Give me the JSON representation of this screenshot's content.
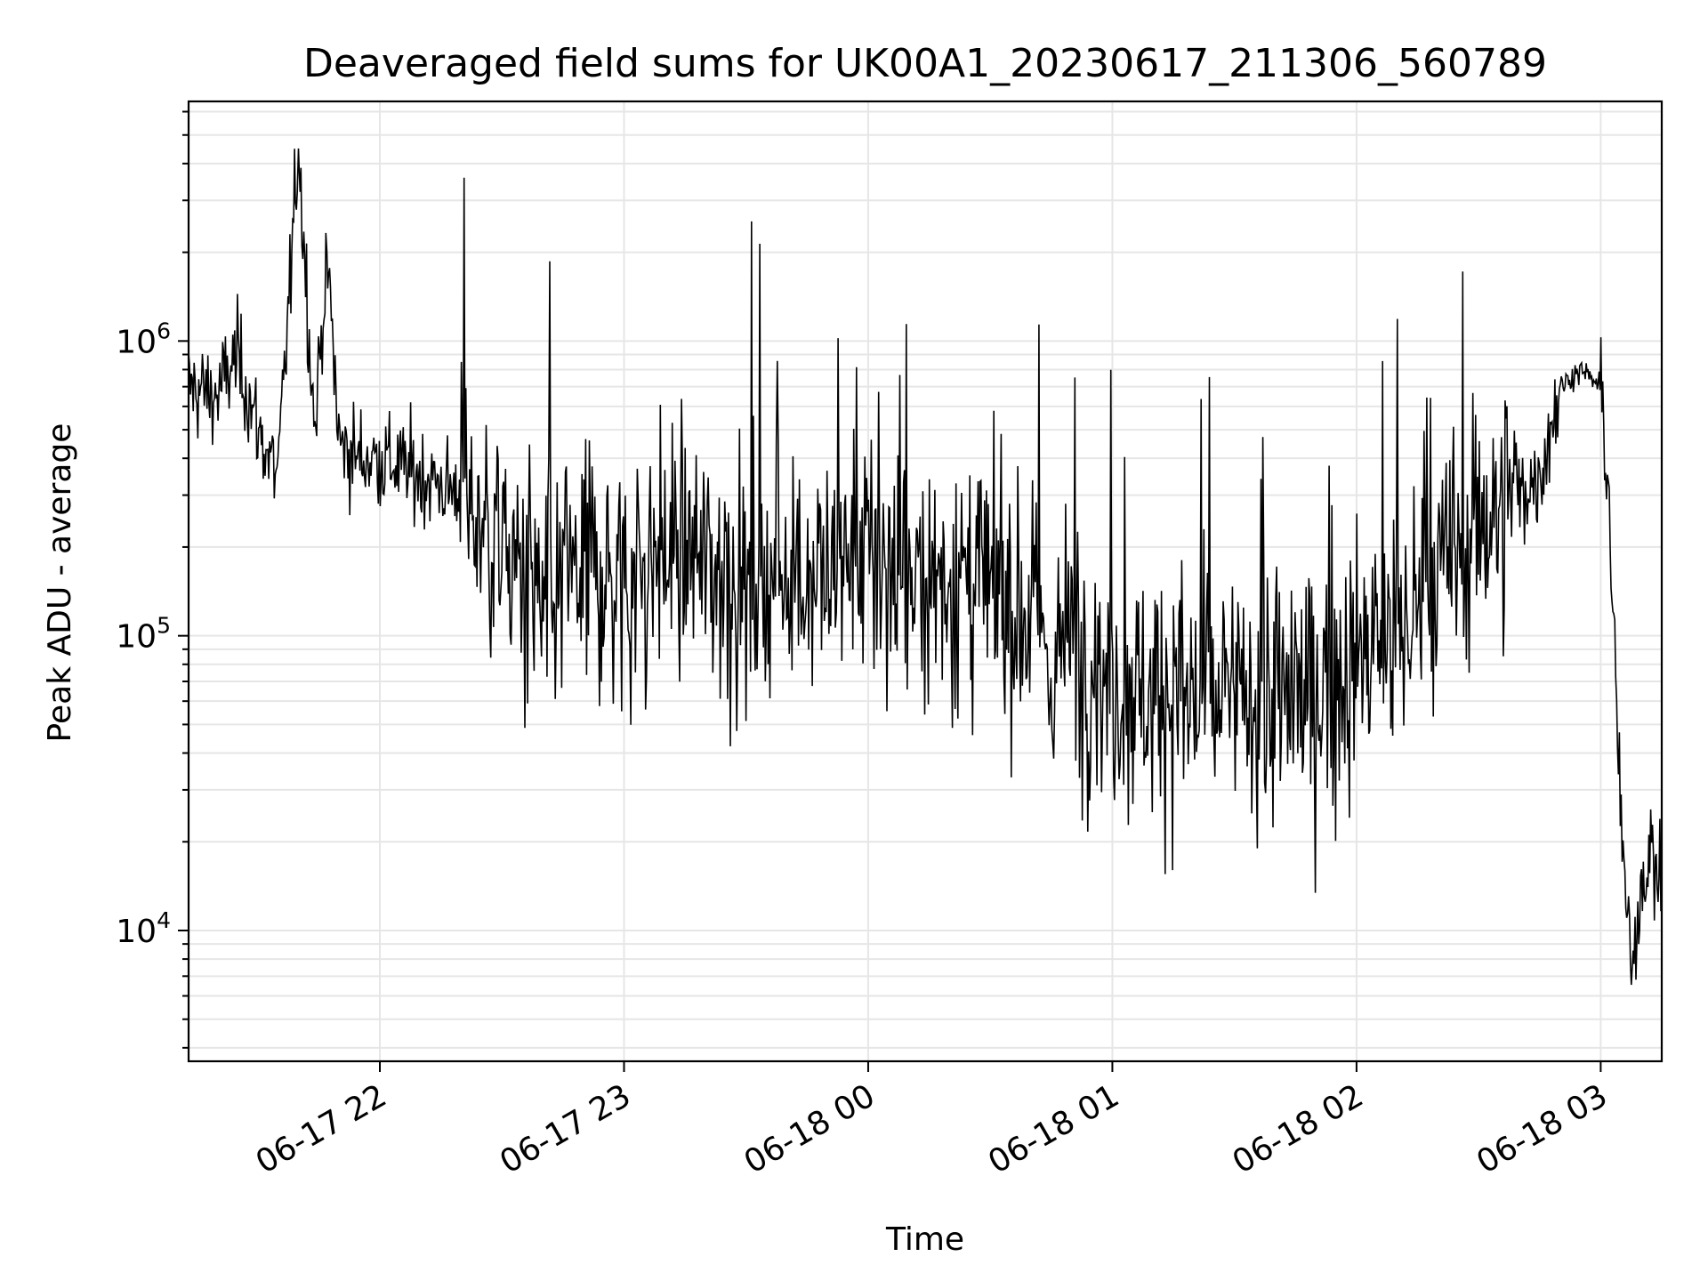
{
  "chart_data": {
    "type": "line",
    "title": "Deaveraged field sums for UK00A1_20230617_211306_560789",
    "xlabel": "Time",
    "ylabel": "Peak ADU - average",
    "y_scale": "log",
    "ylim": [
      3600,
      6500000
    ],
    "xlim": [
      "06-17 21:13",
      "06-18 03:15"
    ],
    "grid": true,
    "grid_color": "#e6e6e6",
    "line_color": "#000000",
    "x_ticks": [
      "06-17 22",
      "06-17 23",
      "06-18 00",
      "06-18 01",
      "06-18 02",
      "06-18 03"
    ],
    "y_ticks": [
      {
        "base": "10",
        "exp": "4",
        "value": 10000
      },
      {
        "base": "10",
        "exp": "5",
        "value": 100000
      },
      {
        "base": "10",
        "exp": "6",
        "value": 1000000
      }
    ],
    "series": [
      {
        "x": [
          "06-17 21:13",
          "06-17 21:20",
          "06-17 21:25",
          "06-17 21:30",
          "06-17 21:33",
          "06-17 21:35",
          "06-17 21:40",
          "06-17 21:44",
          "06-17 21:47",
          "06-17 21:50",
          "06-17 21:55",
          "06-17 22:00",
          "06-17 22:10",
          "06-17 22:20",
          "06-17 22:30",
          "06-17 22:40",
          "06-17 22:45",
          "06-17 22:50",
          "06-17 23:00",
          "06-17 23:10",
          "06-17 23:20",
          "06-17 23:30",
          "06-17 23:40",
          "06-17 23:50",
          "06-18 00:00",
          "06-18 00:10",
          "06-18 00:20",
          "06-18 00:30",
          "06-18 00:40",
          "06-18 00:45",
          "06-18 00:50",
          "06-18 01:00",
          "06-18 01:10",
          "06-18 01:20",
          "06-18 01:30",
          "06-18 01:40",
          "06-18 01:50",
          "06-18 02:00",
          "06-18 02:10",
          "06-18 02:20",
          "06-18 02:30",
          "06-18 02:40",
          "06-18 02:45",
          "06-18 02:50",
          "06-18 02:55",
          "06-18 03:00",
          "06-18 03:02",
          "06-18 03:04",
          "06-18 03:06",
          "06-18 03:08",
          "06-18 03:10",
          "06-18 03:12",
          "06-18 03:15"
        ],
        "y": [
          700000,
          650000,
          900000,
          500000,
          400000,
          350000,
          4500000,
          500000,
          2000000,
          450000,
          400000,
          400000,
          350000,
          300000,
          200000,
          120000,
          150000,
          180000,
          150000,
          200000,
          180000,
          150000,
          170000,
          160000,
          180000,
          150000,
          160000,
          140000,
          120000,
          80000,
          100000,
          70000,
          65000,
          62000,
          60000,
          60000,
          65000,
          80000,
          100000,
          150000,
          250000,
          300000,
          350000,
          700000,
          800000,
          700000,
          300000,
          50000,
          12000,
          8000,
          15000,
          18000,
          15000
        ]
      }
    ]
  }
}
